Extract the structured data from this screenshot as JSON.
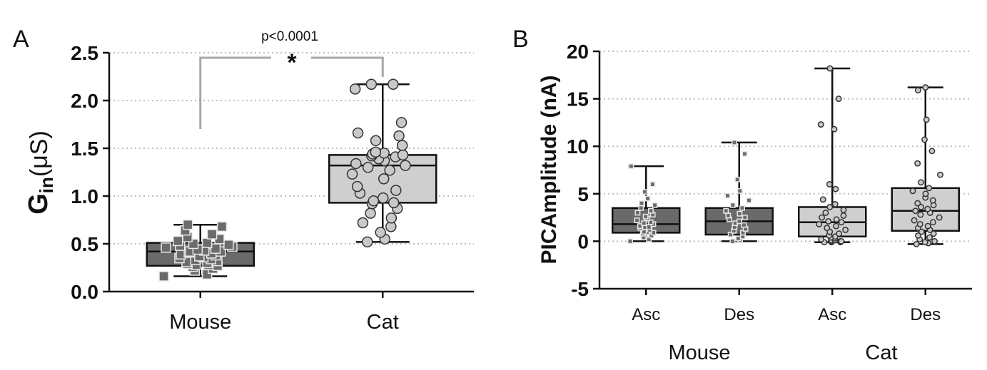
{
  "panels": {
    "A": {
      "letter": "A",
      "ylabel_main": "G",
      "ylabel_sub": "in",
      "ylabel_unit": "(μS)",
      "significance_text": "p<0.0001",
      "significance_star": "*"
    },
    "B": {
      "letter": "B",
      "ylabel": "PICAmplitude (nA)",
      "group_labels": [
        "Mouse",
        "Cat"
      ]
    }
  },
  "chart_data": [
    {
      "type": "box",
      "panel": "A",
      "ylabel": "Gin (μS)",
      "ylim": [
        0,
        2.5
      ],
      "yticks": [
        0.0,
        0.5,
        1.0,
        1.5,
        2.0,
        2.5
      ],
      "ytick_labels": [
        "0.0",
        "0.5",
        "1.0",
        "1.5",
        "2.0",
        "2.5"
      ],
      "grid": "horizontal dotted",
      "categories": [
        "Mouse",
        "Cat"
      ],
      "series": [
        {
          "category": "Mouse",
          "marker": "square",
          "fill": "#6a6a6a",
          "min": 0.16,
          "q1": 0.27,
          "median": 0.42,
          "q3": 0.51,
          "max": 0.7,
          "points": [
            0.16,
            0.18,
            0.22,
            0.24,
            0.26,
            0.27,
            0.28,
            0.28,
            0.29,
            0.3,
            0.31,
            0.32,
            0.33,
            0.34,
            0.35,
            0.36,
            0.37,
            0.38,
            0.39,
            0.4,
            0.41,
            0.42,
            0.42,
            0.43,
            0.44,
            0.45,
            0.46,
            0.47,
            0.48,
            0.49,
            0.5,
            0.51,
            0.53,
            0.55,
            0.57,
            0.6,
            0.64,
            0.68,
            0.7
          ]
        },
        {
          "category": "Cat",
          "marker": "circle",
          "fill": "#cfcfcf",
          "min": 0.52,
          "q1": 0.93,
          "median": 1.32,
          "q3": 1.43,
          "max": 2.17,
          "points": [
            0.52,
            0.55,
            0.62,
            0.68,
            0.72,
            0.77,
            0.82,
            0.87,
            0.92,
            0.93,
            0.95,
            0.98,
            1.03,
            1.06,
            1.1,
            1.18,
            1.23,
            1.27,
            1.3,
            1.32,
            1.34,
            1.37,
            1.39,
            1.41,
            1.42,
            1.43,
            1.44,
            1.45,
            1.46,
            1.53,
            1.58,
            1.63,
            1.66,
            1.77,
            2.12,
            2.17,
            2.17
          ]
        }
      ],
      "annotation": {
        "text": "p<0.0001",
        "marker": "*",
        "between": [
          "Mouse",
          "Cat"
        ]
      }
    },
    {
      "type": "box",
      "panel": "B",
      "ylabel": "PICAmplitude (nA)",
      "ylim": [
        -5,
        20
      ],
      "yticks": [
        -5,
        0,
        5,
        10,
        15,
        20
      ],
      "ytick_labels": [
        "-5",
        "0",
        "5",
        "10",
        "15",
        "20"
      ],
      "grid": "horizontal dotted",
      "categories": [
        "Asc",
        "Des",
        "Asc",
        "Des"
      ],
      "groups": [
        "Mouse",
        "Cat"
      ],
      "series": [
        {
          "group": "Mouse",
          "category": "Asc",
          "marker": "square",
          "fill": "#6a6a6a",
          "min": 0.0,
          "q1": 0.9,
          "median": 1.8,
          "q3": 3.5,
          "max": 7.9,
          "points": [
            0.0,
            0.2,
            0.4,
            0.6,
            0.8,
            0.9,
            1.0,
            1.2,
            1.4,
            1.5,
            1.6,
            1.8,
            1.9,
            2.0,
            2.2,
            2.4,
            2.6,
            2.8,
            3.0,
            3.2,
            3.5,
            3.8,
            4.0,
            4.5,
            5.2,
            6.0,
            7.9
          ]
        },
        {
          "group": "Mouse",
          "category": "Des",
          "marker": "square",
          "fill": "#6a6a6a",
          "min": 0.0,
          "q1": 0.7,
          "median": 2.1,
          "q3": 3.5,
          "max": 10.4,
          "points": [
            0.0,
            0.1,
            0.3,
            0.5,
            0.7,
            0.9,
            1.1,
            1.3,
            1.5,
            1.7,
            1.9,
            2.1,
            2.3,
            2.5,
            2.7,
            2.9,
            3.2,
            3.5,
            3.8,
            4.3,
            4.8,
            5.3,
            6.5,
            9.2,
            10.4
          ]
        },
        {
          "group": "Cat",
          "category": "Asc",
          "marker": "circle",
          "fill": "#cfcfcf",
          "min": -0.1,
          "q1": 0.5,
          "median": 2.0,
          "q3": 3.6,
          "max": 18.2,
          "points": [
            -0.1,
            -0.1,
            -0.1,
            0.0,
            0.0,
            0.0,
            0.1,
            0.1,
            0.2,
            0.3,
            0.4,
            0.5,
            0.6,
            0.8,
            1.0,
            1.2,
            1.4,
            1.6,
            1.8,
            2.0,
            2.1,
            2.3,
            2.5,
            2.7,
            3.0,
            3.3,
            3.6,
            3.9,
            4.4,
            5.5,
            6.0,
            11.8,
            12.3,
            15.0,
            18.2
          ]
        },
        {
          "group": "Cat",
          "category": "Des",
          "marker": "circle",
          "fill": "#cfcfcf",
          "min": -0.3,
          "q1": 1.1,
          "median": 3.2,
          "q3": 5.6,
          "max": 16.2,
          "points": [
            -0.3,
            -0.2,
            -0.1,
            0.0,
            0.2,
            0.4,
            0.6,
            0.8,
            1.0,
            1.2,
            1.4,
            1.6,
            1.8,
            2.0,
            2.2,
            2.5,
            2.8,
            3.0,
            3.2,
            3.4,
            3.6,
            3.8,
            4.0,
            4.3,
            4.6,
            5.0,
            5.3,
            5.6,
            6.2,
            7.0,
            8.2,
            9.5,
            10.7,
            12.8,
            15.9,
            16.2
          ]
        }
      ]
    }
  ]
}
